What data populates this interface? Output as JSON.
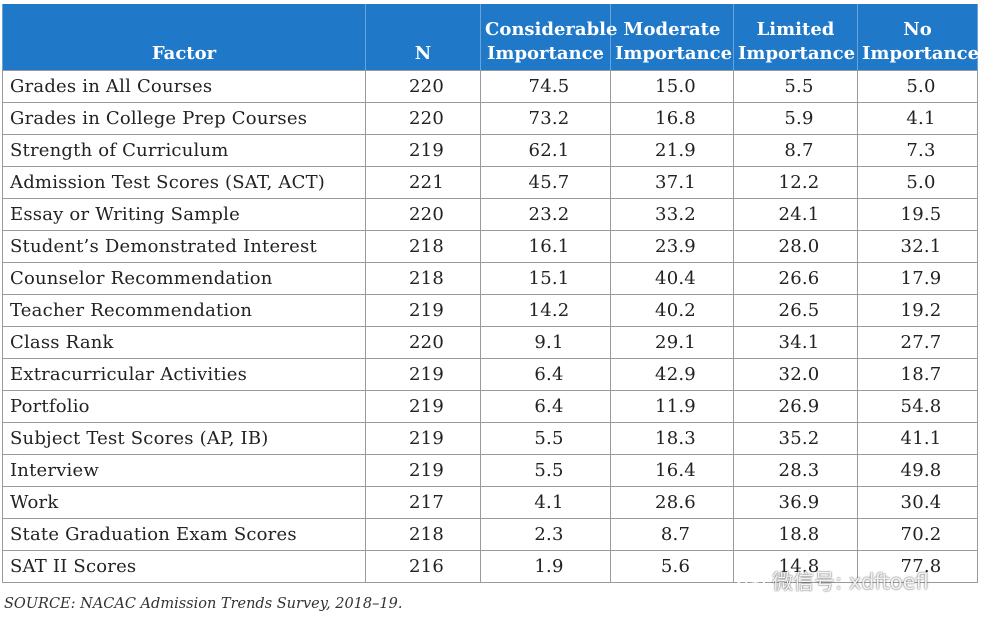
{
  "chart_data": {
    "type": "table",
    "columns": [
      {
        "key": "factor",
        "lines": [
          "Factor"
        ]
      },
      {
        "key": "n",
        "lines": [
          "N"
        ]
      },
      {
        "key": "considerable",
        "lines": [
          "Considerable",
          "Importance"
        ]
      },
      {
        "key": "moderate",
        "lines": [
          "Moderate",
          "Importance"
        ]
      },
      {
        "key": "limited",
        "lines": [
          "Limited",
          "Importance"
        ]
      },
      {
        "key": "none",
        "lines": [
          "No",
          "Importance"
        ]
      }
    ],
    "rows": [
      [
        "Grades in All Courses",
        "220",
        "74.5",
        "15.0",
        "5.5",
        "5.0"
      ],
      [
        "Grades in College Prep Courses",
        "220",
        "73.2",
        "16.8",
        "5.9",
        "4.1"
      ],
      [
        "Strength of Curriculum",
        "219",
        "62.1",
        "21.9",
        "8.7",
        "7.3"
      ],
      [
        "Admission Test Scores (SAT, ACT)",
        "221",
        "45.7",
        "37.1",
        "12.2",
        "5.0"
      ],
      [
        "Essay or Writing Sample",
        "220",
        "23.2",
        "33.2",
        "24.1",
        "19.5"
      ],
      [
        "Student’s Demonstrated Interest",
        "218",
        "16.1",
        "23.9",
        "28.0",
        "32.1"
      ],
      [
        "Counselor Recommendation",
        "218",
        "15.1",
        "40.4",
        "26.6",
        "17.9"
      ],
      [
        "Teacher Recommendation",
        "219",
        "14.2",
        "40.2",
        "26.5",
        "19.2"
      ],
      [
        "Class Rank",
        "220",
        "9.1",
        "29.1",
        "34.1",
        "27.7"
      ],
      [
        "Extracurricular Activities",
        "219",
        "6.4",
        "42.9",
        "32.0",
        "18.7"
      ],
      [
        "Portfolio",
        "219",
        "6.4",
        "11.9",
        "26.9",
        "54.8"
      ],
      [
        "Subject Test Scores (AP, IB)",
        "219",
        "5.5",
        "18.3",
        "35.2",
        "41.1"
      ],
      [
        "Interview",
        "219",
        "5.5",
        "16.4",
        "28.3",
        "49.8"
      ],
      [
        "Work",
        "217",
        "4.1",
        "28.6",
        "36.9",
        "30.4"
      ],
      [
        "State Graduation Exam Scores",
        "218",
        "2.3",
        "8.7",
        "18.8",
        "70.2"
      ],
      [
        "SAT II Scores",
        "216",
        "1.9",
        "5.6",
        "14.8",
        "77.8"
      ]
    ],
    "source": "SOURCE: NACAC Admission Trends Survey, 2018–19.",
    "header_color": "#1f78c8",
    "header_text_color": "#ffffff",
    "border_color": "#9a9a9a"
  },
  "watermark": {
    "icon": "wechat-icon",
    "text": "微信号: xdftoefl"
  }
}
